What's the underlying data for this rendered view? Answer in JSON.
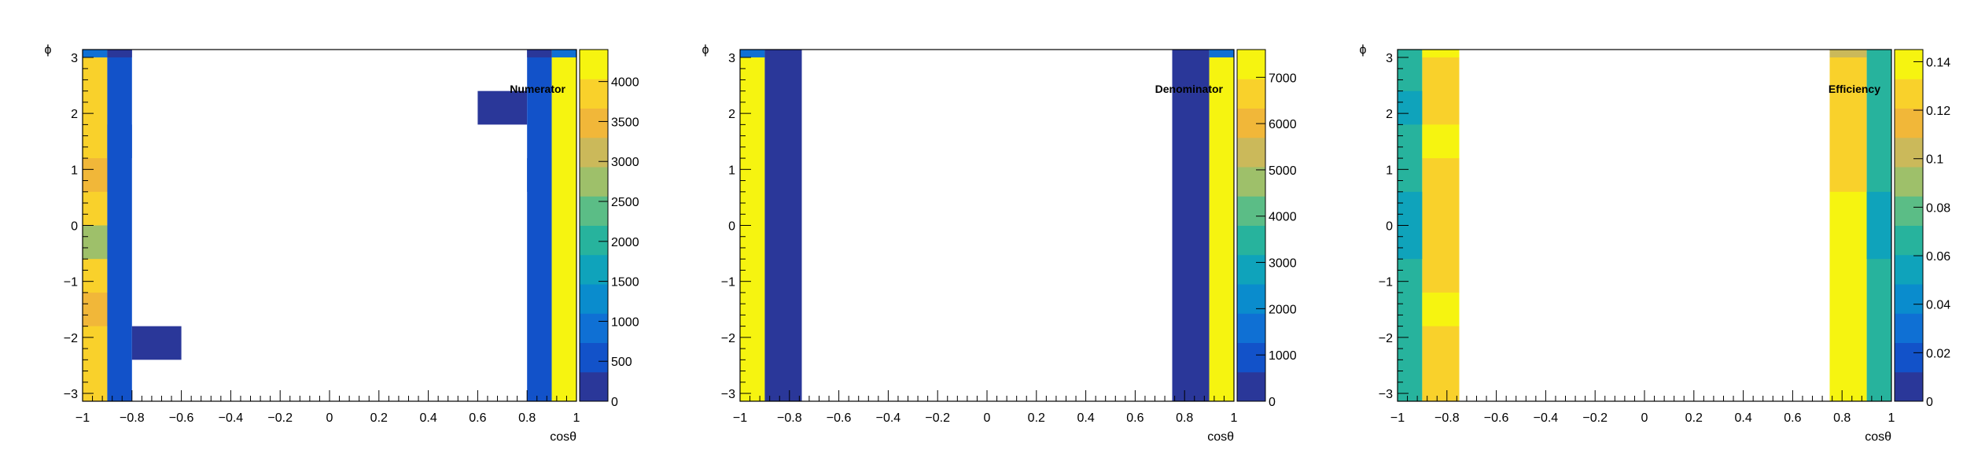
{
  "chart_data": [
    {
      "type": "heatmap",
      "title": "Numerator",
      "xlabel": "cosθ",
      "ylabel": "ϕ",
      "xlim": [
        -1,
        1
      ],
      "ylim": [
        -3.14,
        3.14
      ],
      "x_ticks": [
        "−1",
        "−0.8",
        "−0.6",
        "−0.4",
        "−0.2",
        "0",
        "0.2",
        "0.4",
        "0.6",
        "0.8",
        "1"
      ],
      "y_ticks": [
        "−3",
        "−2",
        "−1",
        "0",
        "1",
        "2",
        "3"
      ],
      "z_ticks": [
        "0",
        "500",
        "1000",
        "1500",
        "2000",
        "2500",
        "3000",
        "3500",
        "4000"
      ],
      "zlim": [
        0,
        4400
      ],
      "cells": [
        {
          "x": [
            -1.0,
            -0.9
          ],
          "y": [
            -3.14,
            3.14
          ],
          "z": 3900
        },
        {
          "x": [
            -1.0,
            -0.9
          ],
          "y": [
            -0.6,
            0.0
          ],
          "z": 2800
        },
        {
          "x": [
            -1.0,
            -0.9
          ],
          "y": [
            0.6,
            1.2
          ],
          "z": 3500
        },
        {
          "x": [
            -1.0,
            -0.9
          ],
          "y": [
            -1.8,
            -1.2
          ],
          "z": 3500
        },
        {
          "x": [
            -1.0,
            -0.9
          ],
          "y": [
            3.0,
            3.14
          ],
          "z": 900
        },
        {
          "x": [
            -0.9,
            -0.8
          ],
          "y": [
            -3.14,
            3.14
          ],
          "z": 500
        },
        {
          "x": [
            -0.9,
            -0.8
          ],
          "y": [
            1.2,
            1.8
          ],
          "z": 700
        },
        {
          "x": [
            -0.9,
            -0.8
          ],
          "y": [
            3.0,
            3.14
          ],
          "z": 150
        },
        {
          "x": [
            -0.8,
            -0.6
          ],
          "y": [
            -2.4,
            -1.8
          ],
          "z": 100
        },
        {
          "x": [
            0.6,
            0.8
          ],
          "y": [
            1.8,
            2.4
          ],
          "z": 100
        },
        {
          "x": [
            0.8,
            0.9
          ],
          "y": [
            -3.14,
            3.14
          ],
          "z": 500
        },
        {
          "x": [
            0.8,
            0.9
          ],
          "y": [
            0.6,
            1.2
          ],
          "z": 700
        },
        {
          "x": [
            0.8,
            0.9
          ],
          "y": [
            3.0,
            3.14
          ],
          "z": 150
        },
        {
          "x": [
            0.9,
            1.0
          ],
          "y": [
            -3.14,
            3.14
          ],
          "z": 4100
        },
        {
          "x": [
            0.9,
            1.0
          ],
          "y": [
            3.0,
            3.14
          ],
          "z": 900
        }
      ]
    },
    {
      "type": "heatmap",
      "title": "Denominator",
      "xlabel": "cosθ",
      "ylabel": "ϕ",
      "xlim": [
        -1,
        1
      ],
      "ylim": [
        -3.14,
        3.14
      ],
      "x_ticks": [
        "−1",
        "−0.8",
        "−0.6",
        "−0.4",
        "−0.2",
        "0",
        "0.2",
        "0.4",
        "0.6",
        "0.8",
        "1"
      ],
      "y_ticks": [
        "−3",
        "−2",
        "−1",
        "0",
        "1",
        "2",
        "3"
      ],
      "z_ticks": [
        "0",
        "1000",
        "2000",
        "3000",
        "4000",
        "5000",
        "6000",
        "7000"
      ],
      "zlim": [
        0,
        7600
      ],
      "cells": [
        {
          "x": [
            -1.0,
            -0.9
          ],
          "y": [
            -3.14,
            3.14
          ],
          "z": 7300
        },
        {
          "x": [
            -1.0,
            -0.9
          ],
          "y": [
            3.0,
            3.14
          ],
          "z": 1500
        },
        {
          "x": [
            -0.9,
            -0.75
          ],
          "y": [
            -3.14,
            3.14
          ],
          "z": 300
        },
        {
          "x": [
            0.75,
            0.9
          ],
          "y": [
            -3.14,
            3.14
          ],
          "z": 300
        },
        {
          "x": [
            0.9,
            1.0
          ],
          "y": [
            -3.14,
            3.14
          ],
          "z": 7300
        },
        {
          "x": [
            0.9,
            1.0
          ],
          "y": [
            3.0,
            3.14
          ],
          "z": 1500
        }
      ]
    },
    {
      "type": "heatmap",
      "title": "Efficiency",
      "xlabel": "cosθ",
      "ylabel": "ϕ",
      "xlim": [
        -1,
        1
      ],
      "ylim": [
        -3.14,
        3.14
      ],
      "x_ticks": [
        "−1",
        "−0.8",
        "−0.6",
        "−0.4",
        "−0.2",
        "0",
        "0.2",
        "0.4",
        "0.6",
        "0.8",
        "1"
      ],
      "y_ticks": [
        "−3",
        "−2",
        "−1",
        "0",
        "1",
        "2",
        "3"
      ],
      "z_ticks": [
        "0",
        "0.02",
        "0.04",
        "0.06",
        "0.08",
        "0.1",
        "0.12",
        "0.14"
      ],
      "zlim": [
        0,
        0.145
      ],
      "cells": [
        {
          "x": [
            -1.0,
            -0.9
          ],
          "y": [
            -3.14,
            3.14
          ],
          "z": 0.065
        },
        {
          "x": [
            -1.0,
            -0.9
          ],
          "y": [
            -0.6,
            0.6
          ],
          "z": 0.055
        },
        {
          "x": [
            -1.0,
            -0.9
          ],
          "y": [
            1.8,
            2.4
          ],
          "z": 0.06
        },
        {
          "x": [
            -0.9,
            -0.75
          ],
          "y": [
            -3.14,
            3.14
          ],
          "z": 0.125
        },
        {
          "x": [
            -0.9,
            -0.75
          ],
          "y": [
            -1.8,
            -1.2
          ],
          "z": 0.14
        },
        {
          "x": [
            -0.9,
            -0.75
          ],
          "y": [
            1.2,
            1.8
          ],
          "z": 0.135
        },
        {
          "x": [
            -0.9,
            -0.75
          ],
          "y": [
            3.0,
            3.14
          ],
          "z": 0.14
        },
        {
          "x": [
            0.75,
            0.9
          ],
          "y": [
            -3.14,
            3.14
          ],
          "z": 0.135
        },
        {
          "x": [
            0.75,
            0.9
          ],
          "y": [
            0.6,
            3.14
          ],
          "z": 0.125
        },
        {
          "x": [
            0.75,
            0.9
          ],
          "y": [
            -1.8,
            -1.2
          ],
          "z": 0.14
        },
        {
          "x": [
            0.75,
            0.9
          ],
          "y": [
            3.0,
            3.14
          ],
          "z": 0.1
        },
        {
          "x": [
            0.9,
            1.0
          ],
          "y": [
            -3.14,
            3.14
          ],
          "z": 0.065
        },
        {
          "x": [
            0.9,
            1.0
          ],
          "y": [
            -0.6,
            0.6
          ],
          "z": 0.06
        }
      ]
    }
  ]
}
